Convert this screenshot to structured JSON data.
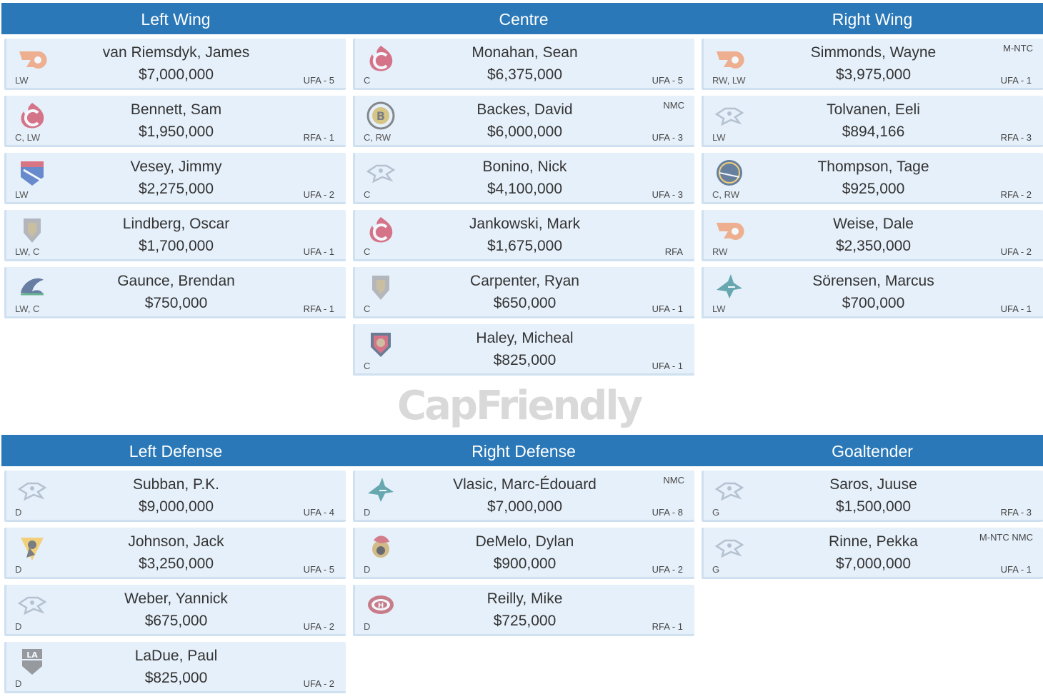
{
  "headers": {
    "forwards": [
      "Left Wing",
      "Centre",
      "Right Wing"
    ],
    "defense": [
      "Left Defense",
      "Right Defense",
      "Goaltender"
    ]
  },
  "watermark": "CapFriendly",
  "colors": {
    "header_bg": "#2a78b8",
    "card_bg": "#e6f0fa"
  },
  "left_wing": [
    {
      "team": "flyers-logo-icon",
      "pos": "LW",
      "name": "van Riemsdyk, James",
      "salary": "$7,000,000",
      "status": "UFA - 5",
      "clause": ""
    },
    {
      "team": "flames-logo-icon",
      "pos": "C, LW",
      "name": "Bennett, Sam",
      "salary": "$1,950,000",
      "status": "RFA - 1",
      "clause": ""
    },
    {
      "team": "rangers-logo-icon",
      "pos": "LW",
      "name": "Vesey, Jimmy",
      "salary": "$2,275,000",
      "status": "UFA - 2",
      "clause": ""
    },
    {
      "team": "golden-knights-logo-icon",
      "pos": "LW, C",
      "name": "Lindberg, Oscar",
      "salary": "$1,700,000",
      "status": "UFA - 1",
      "clause": ""
    },
    {
      "team": "canucks-logo-icon",
      "pos": "LW, C",
      "name": "Gaunce, Brendan",
      "salary": "$750,000",
      "status": "RFA - 1",
      "clause": ""
    }
  ],
  "centre": [
    {
      "team": "flames-logo-icon",
      "pos": "C",
      "name": "Monahan, Sean",
      "salary": "$6,375,000",
      "status": "UFA - 5",
      "clause": ""
    },
    {
      "team": "bruins-logo-icon",
      "pos": "C, RW",
      "name": "Backes, David",
      "salary": "$6,000,000",
      "status": "UFA - 3",
      "clause": "NMC"
    },
    {
      "team": "predators-logo-icon",
      "pos": "C",
      "name": "Bonino, Nick",
      "salary": "$4,100,000",
      "status": "UFA - 3",
      "clause": ""
    },
    {
      "team": "flames-logo-icon",
      "pos": "C",
      "name": "Jankowski, Mark",
      "salary": "$1,675,000",
      "status": "RFA",
      "clause": ""
    },
    {
      "team": "golden-knights-logo-icon",
      "pos": "C",
      "name": "Carpenter, Ryan",
      "salary": "$650,000",
      "status": "UFA - 1",
      "clause": ""
    },
    {
      "team": "panthers-logo-icon",
      "pos": "C",
      "name": "Haley, Micheal",
      "salary": "$825,000",
      "status": "UFA - 1",
      "clause": ""
    }
  ],
  "right_wing": [
    {
      "team": "flyers-logo-icon",
      "pos": "RW, LW",
      "name": "Simmonds, Wayne",
      "salary": "$3,975,000",
      "status": "UFA - 1",
      "clause": "M-NTC"
    },
    {
      "team": "predators-logo-icon",
      "pos": "LW",
      "name": "Tolvanen, Eeli",
      "salary": "$894,166",
      "status": "RFA - 3",
      "clause": ""
    },
    {
      "team": "sabres-logo-icon",
      "pos": "C, RW",
      "name": "Thompson, Tage",
      "salary": "$925,000",
      "status": "RFA - 2",
      "clause": ""
    },
    {
      "team": "flyers-logo-icon",
      "pos": "RW",
      "name": "Weise, Dale",
      "salary": "$2,350,000",
      "status": "UFA - 2",
      "clause": ""
    },
    {
      "team": "sharks-logo-icon",
      "pos": "LW",
      "name": "Sörensen, Marcus",
      "salary": "$700,000",
      "status": "UFA - 1",
      "clause": ""
    }
  ],
  "left_defense": [
    {
      "team": "predators-logo-icon",
      "pos": "D",
      "name": "Subban, P.K.",
      "salary": "$9,000,000",
      "status": "UFA - 4",
      "clause": ""
    },
    {
      "team": "penguins-logo-icon",
      "pos": "D",
      "name": "Johnson, Jack",
      "salary": "$3,250,000",
      "status": "UFA - 5",
      "clause": ""
    },
    {
      "team": "predators-logo-icon",
      "pos": "D",
      "name": "Weber, Yannick",
      "salary": "$675,000",
      "status": "UFA - 2",
      "clause": ""
    },
    {
      "team": "kings-logo-icon",
      "pos": "D",
      "name": "LaDue, Paul",
      "salary": "$825,000",
      "status": "UFA - 2",
      "clause": ""
    }
  ],
  "right_defense": [
    {
      "team": "sharks-logo-icon",
      "pos": "D",
      "name": "Vlasic, Marc-Édouard",
      "salary": "$7,000,000",
      "status": "UFA - 8",
      "clause": "NMC"
    },
    {
      "team": "senators-logo-icon",
      "pos": "D",
      "name": "DeMelo, Dylan",
      "salary": "$900,000",
      "status": "UFA - 2",
      "clause": ""
    },
    {
      "team": "canadiens-logo-icon",
      "pos": "D",
      "name": "Reilly, Mike",
      "salary": "$725,000",
      "status": "RFA - 1",
      "clause": ""
    }
  ],
  "goaltender": [
    {
      "team": "predators-logo-icon",
      "pos": "G",
      "name": "Saros, Juuse",
      "salary": "$1,500,000",
      "status": "RFA - 3",
      "clause": ""
    },
    {
      "team": "predators-logo-icon",
      "pos": "G",
      "name": "Rinne, Pekka",
      "salary": "$7,000,000",
      "status": "UFA - 1",
      "clause": "M-NTC NMC"
    }
  ]
}
